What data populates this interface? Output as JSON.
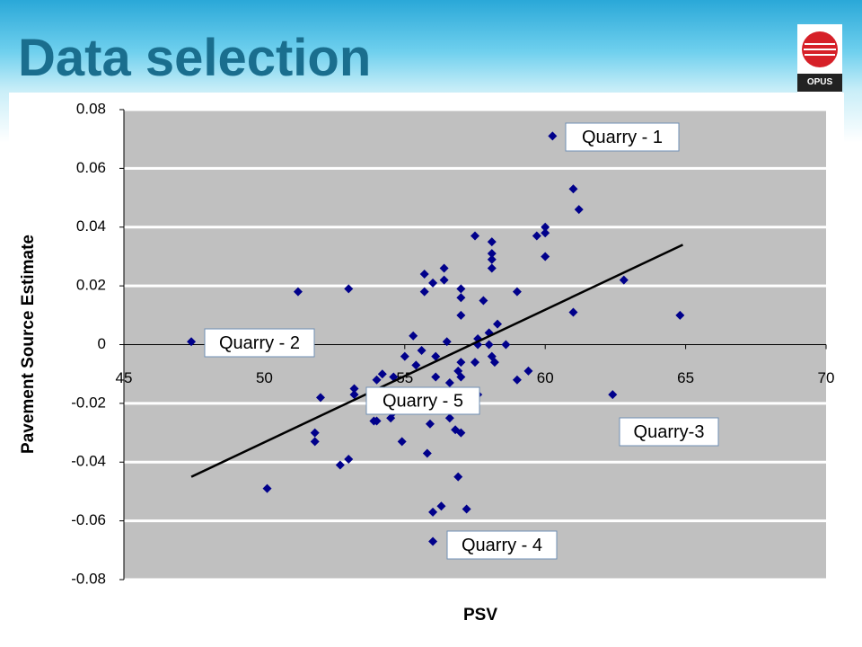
{
  "slide_title": "Data selection",
  "logo": "OPUS",
  "chart_data": {
    "type": "scatter",
    "x_label": "PSV",
    "y_label": "Pavement Source Estimate",
    "color": "#00008b",
    "x": [
      60.26,
      61.0,
      61.2,
      60.0,
      60.0,
      59.7,
      60.0,
      57.5,
      58.1,
      58.1,
      58.1,
      58.1,
      62.8,
      56.4,
      55.7,
      56.0,
      56.4,
      55.7,
      57.0,
      57.0,
      57.8,
      51.2,
      53.0,
      59.0,
      61.0,
      64.8,
      57.0,
      58.3,
      58.0,
      55.3,
      57.6,
      47.4,
      56.5,
      58.6,
      57.6,
      58.0,
      55.6,
      58.1,
      56.1,
      58.2,
      57.5,
      55.0,
      55.4,
      59.4,
      59.0,
      57.0,
      56.9,
      57.0,
      54.6,
      54.2,
      56.1,
      56.6,
      54.0,
      53.2,
      53.2,
      57.6,
      62.4,
      52.0,
      54.6,
      55.1,
      55.4,
      54.0,
      54.6,
      56.6,
      53.9,
      54.5,
      54.0,
      55.9,
      56.6,
      56.8,
      57.0,
      51.8,
      51.8,
      54.9,
      55.8,
      53.0,
      52.7,
      56.9,
      50.1,
      56.3,
      56.0,
      57.2,
      56.0
    ],
    "y": [
      0.071,
      0.053,
      0.046,
      0.04,
      0.038,
      0.037,
      0.03,
      0.037,
      0.035,
      0.031,
      0.029,
      0.026,
      0.022,
      0.026,
      0.024,
      0.021,
      0.022,
      0.018,
      0.019,
      0.016,
      0.015,
      0.018,
      0.019,
      0.018,
      0.011,
      0.01,
      0.01,
      0.007,
      0.004,
      0.003,
      0.002,
      0.001,
      0.001,
      0.0,
      0.0,
      0.0,
      -0.002,
      -0.004,
      -0.004,
      -0.006,
      -0.006,
      -0.004,
      -0.007,
      -0.009,
      -0.012,
      -0.006,
      -0.009,
      -0.011,
      -0.011,
      -0.01,
      -0.011,
      -0.013,
      -0.012,
      -0.015,
      -0.017,
      -0.017,
      -0.017,
      -0.018,
      -0.016,
      -0.019,
      -0.021,
      -0.022,
      -0.023,
      -0.022,
      -0.026,
      -0.025,
      -0.026,
      -0.027,
      -0.025,
      -0.029,
      -0.03,
      -0.03,
      -0.033,
      -0.033,
      -0.037,
      -0.039,
      -0.041,
      -0.045,
      -0.049,
      -0.055,
      -0.057,
      -0.056,
      -0.067
    ],
    "trendline": {
      "x": [
        47.4,
        64.9
      ],
      "y": [
        -0.045,
        0.034
      ],
      "color": "#000000"
    },
    "xlim": [
      45,
      70
    ],
    "xticks": [
      45,
      50,
      55,
      60,
      65,
      70
    ],
    "ylim": [
      -0.08,
      0.08
    ],
    "yticks": [
      0.08,
      0.06,
      0.04,
      0.02,
      0,
      -0.02,
      -0.04,
      -0.06,
      -0.08
    ],
    "grid": true,
    "annotations": [
      "Quarry - 1",
      "Quarry - 2",
      "Quarry - 5",
      "Quarry-3",
      "Quarry - 4"
    ]
  }
}
